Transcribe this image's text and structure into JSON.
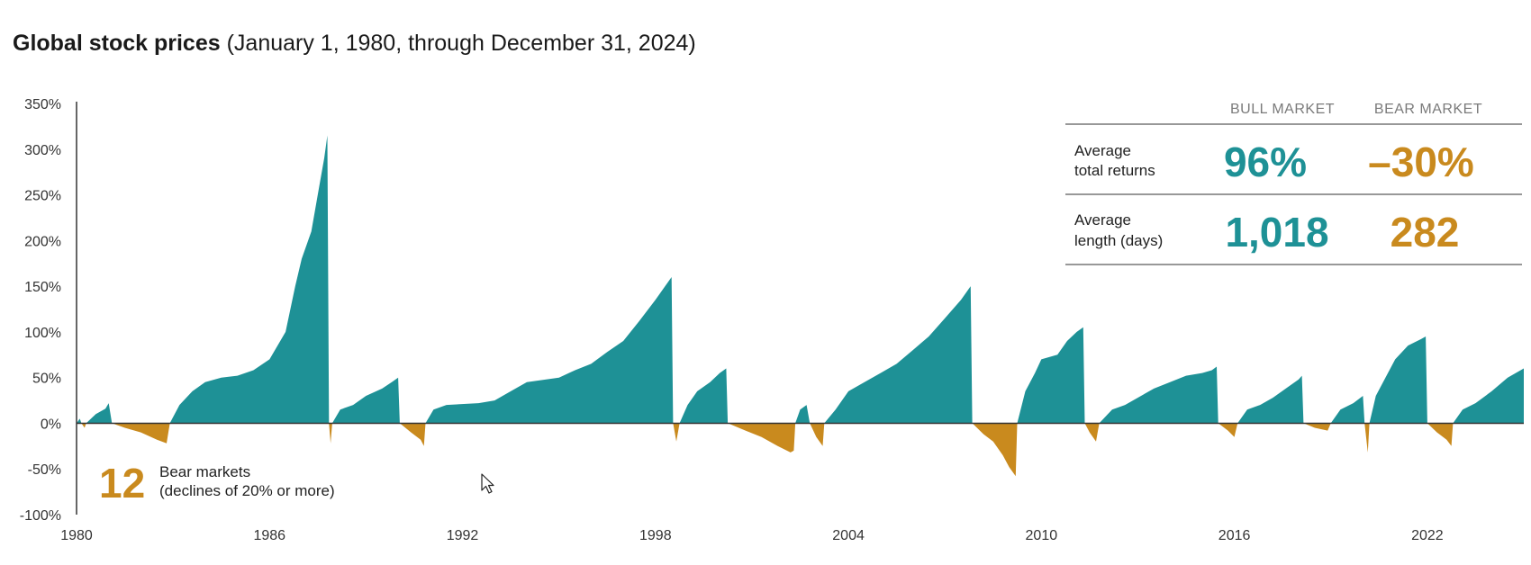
{
  "title": {
    "main": "Global stock prices",
    "sub": " (January 1, 1980, through December 31, 2024)"
  },
  "colors": {
    "bull": "#1e9196",
    "bear": "#c98a1e",
    "axis": "#333333",
    "rule": "#777777"
  },
  "stats": {
    "headers": {
      "bull": "BULL MARKET",
      "bear": "BEAR MARKET"
    },
    "rows": [
      {
        "label": [
          "Average",
          "total returns"
        ],
        "bull": "96%",
        "bear": "–30%"
      },
      {
        "label": [
          "Average",
          "length (days)"
        ],
        "bull": "1,018",
        "bear": "282"
      }
    ]
  },
  "note": {
    "count": "12",
    "text": [
      "Bear markets",
      "(declines of 20% or more)"
    ]
  },
  "chart_data": {
    "type": "area",
    "xlim": [
      1980.0,
      2025.0
    ],
    "ylim": [
      -100,
      350
    ],
    "y_ticks": [
      350,
      300,
      250,
      200,
      150,
      100,
      50,
      0,
      -50,
      -100
    ],
    "y_tick_suffix": "%",
    "x_ticks": [
      1980,
      1986,
      1992,
      1998,
      2004,
      2010,
      2016,
      2022
    ],
    "periods": [
      {
        "kind": "bull",
        "pts": [
          [
            1980.0,
            0
          ],
          [
            1980.1,
            5
          ],
          [
            1980.15,
            0
          ]
        ]
      },
      {
        "kind": "bear",
        "pts": [
          [
            1980.15,
            0
          ],
          [
            1980.25,
            -5
          ],
          [
            1980.3,
            0
          ]
        ]
      },
      {
        "kind": "bull",
        "pts": [
          [
            1980.3,
            0
          ],
          [
            1980.6,
            10
          ],
          [
            1980.9,
            16
          ],
          [
            1981.0,
            22
          ],
          [
            1981.1,
            0
          ]
        ]
      },
      {
        "kind": "bear",
        "pts": [
          [
            1981.1,
            0
          ],
          [
            1981.5,
            -5
          ],
          [
            1982.0,
            -10
          ],
          [
            1982.5,
            -18
          ],
          [
            1982.8,
            -22
          ],
          [
            1982.9,
            0
          ]
        ]
      },
      {
        "kind": "bull",
        "pts": [
          [
            1982.9,
            0
          ],
          [
            1983.2,
            20
          ],
          [
            1983.6,
            35
          ],
          [
            1984.0,
            45
          ],
          [
            1984.5,
            50
          ],
          [
            1985.0,
            52
          ],
          [
            1985.5,
            58
          ],
          [
            1986.0,
            70
          ],
          [
            1986.5,
            100
          ],
          [
            1986.8,
            150
          ],
          [
            1987.0,
            180
          ],
          [
            1987.3,
            210
          ],
          [
            1987.5,
            250
          ],
          [
            1987.7,
            290
          ],
          [
            1987.8,
            315
          ],
          [
            1987.85,
            0
          ]
        ]
      },
      {
        "kind": "bear",
        "pts": [
          [
            1987.85,
            0
          ],
          [
            1987.9,
            -22
          ],
          [
            1987.95,
            0
          ]
        ]
      },
      {
        "kind": "bull",
        "pts": [
          [
            1987.95,
            0
          ],
          [
            1988.2,
            15
          ],
          [
            1988.6,
            20
          ],
          [
            1989.0,
            30
          ],
          [
            1989.5,
            38
          ],
          [
            1989.8,
            45
          ],
          [
            1990.0,
            50
          ],
          [
            1990.05,
            0
          ]
        ]
      },
      {
        "kind": "bear",
        "pts": [
          [
            1990.05,
            0
          ],
          [
            1990.4,
            -10
          ],
          [
            1990.7,
            -18
          ],
          [
            1990.8,
            -25
          ],
          [
            1990.85,
            0
          ]
        ]
      },
      {
        "kind": "bull",
        "pts": [
          [
            1990.85,
            0
          ],
          [
            1991.1,
            15
          ],
          [
            1991.5,
            20
          ],
          [
            1992.5,
            22
          ],
          [
            1993.0,
            25
          ],
          [
            1993.5,
            35
          ],
          [
            1994.0,
            45
          ],
          [
            1995.0,
            50
          ],
          [
            1995.5,
            58
          ],
          [
            1996.0,
            65
          ],
          [
            1996.5,
            78
          ],
          [
            1997.0,
            90
          ],
          [
            1997.5,
            112
          ],
          [
            1998.0,
            135
          ],
          [
            1998.3,
            150
          ],
          [
            1998.5,
            160
          ],
          [
            1998.55,
            0
          ]
        ]
      },
      {
        "kind": "bear",
        "pts": [
          [
            1998.55,
            0
          ],
          [
            1998.65,
            -20
          ],
          [
            1998.75,
            0
          ]
        ]
      },
      {
        "kind": "bull",
        "pts": [
          [
            1998.75,
            0
          ],
          [
            1999.0,
            20
          ],
          [
            1999.3,
            35
          ],
          [
            1999.7,
            45
          ],
          [
            2000.0,
            55
          ],
          [
            2000.2,
            60
          ],
          [
            2000.25,
            0
          ]
        ]
      },
      {
        "kind": "bear",
        "pts": [
          [
            2000.25,
            0
          ],
          [
            2000.8,
            -8
          ],
          [
            2001.3,
            -15
          ],
          [
            2001.8,
            -25
          ],
          [
            2002.2,
            -32
          ],
          [
            2002.3,
            -30
          ],
          [
            2002.35,
            0
          ]
        ]
      },
      {
        "kind": "bull",
        "pts": [
          [
            2002.35,
            0
          ],
          [
            2002.5,
            15
          ],
          [
            2002.7,
            20
          ],
          [
            2002.8,
            0
          ]
        ]
      },
      {
        "kind": "bear",
        "pts": [
          [
            2002.8,
            0
          ],
          [
            2003.0,
            -15
          ],
          [
            2003.2,
            -25
          ],
          [
            2003.25,
            0
          ]
        ]
      },
      {
        "kind": "bull",
        "pts": [
          [
            2003.25,
            0
          ],
          [
            2003.6,
            15
          ],
          [
            2004.0,
            35
          ],
          [
            2004.5,
            45
          ],
          [
            2005.0,
            55
          ],
          [
            2005.5,
            65
          ],
          [
            2006.0,
            80
          ],
          [
            2006.5,
            95
          ],
          [
            2007.0,
            115
          ],
          [
            2007.5,
            135
          ],
          [
            2007.8,
            150
          ],
          [
            2007.85,
            0
          ]
        ]
      },
      {
        "kind": "bear",
        "pts": [
          [
            2007.85,
            0
          ],
          [
            2008.2,
            -12
          ],
          [
            2008.5,
            -20
          ],
          [
            2008.8,
            -35
          ],
          [
            2009.0,
            -48
          ],
          [
            2009.2,
            -58
          ],
          [
            2009.25,
            0
          ]
        ]
      },
      {
        "kind": "bull",
        "pts": [
          [
            2009.25,
            0
          ],
          [
            2009.5,
            35
          ],
          [
            2009.8,
            55
          ],
          [
            2010.0,
            70
          ],
          [
            2010.5,
            75
          ],
          [
            2010.8,
            90
          ],
          [
            2011.1,
            100
          ],
          [
            2011.3,
            105
          ],
          [
            2011.35,
            0
          ]
        ]
      },
      {
        "kind": "bear",
        "pts": [
          [
            2011.35,
            0
          ],
          [
            2011.5,
            -10
          ],
          [
            2011.7,
            -20
          ],
          [
            2011.8,
            0
          ]
        ]
      },
      {
        "kind": "bull",
        "pts": [
          [
            2011.8,
            0
          ],
          [
            2012.2,
            15
          ],
          [
            2012.6,
            20
          ],
          [
            2013.0,
            28
          ],
          [
            2013.5,
            38
          ],
          [
            2014.0,
            45
          ],
          [
            2014.5,
            52
          ],
          [
            2015.0,
            55
          ],
          [
            2015.3,
            58
          ],
          [
            2015.45,
            62
          ],
          [
            2015.5,
            0
          ]
        ]
      },
      {
        "kind": "bear",
        "pts": [
          [
            2015.5,
            0
          ],
          [
            2015.8,
            -8
          ],
          [
            2016.0,
            -15
          ],
          [
            2016.1,
            0
          ]
        ]
      },
      {
        "kind": "bull",
        "pts": [
          [
            2016.1,
            0
          ],
          [
            2016.4,
            15
          ],
          [
            2016.8,
            20
          ],
          [
            2017.2,
            28
          ],
          [
            2017.6,
            38
          ],
          [
            2018.0,
            48
          ],
          [
            2018.1,
            52
          ],
          [
            2018.15,
            0
          ]
        ]
      },
      {
        "kind": "bear",
        "pts": [
          [
            2018.15,
            0
          ],
          [
            2018.5,
            -5
          ],
          [
            2018.9,
            -8
          ],
          [
            2019.0,
            0
          ]
        ]
      },
      {
        "kind": "bull",
        "pts": [
          [
            2019.0,
            0
          ],
          [
            2019.3,
            15
          ],
          [
            2019.7,
            22
          ],
          [
            2020.0,
            30
          ],
          [
            2020.05,
            0
          ]
        ]
      },
      {
        "kind": "bear",
        "pts": [
          [
            2020.05,
            0
          ],
          [
            2020.15,
            -32
          ],
          [
            2020.2,
            0
          ]
        ]
      },
      {
        "kind": "bull",
        "pts": [
          [
            2020.2,
            0
          ],
          [
            2020.4,
            30
          ],
          [
            2020.7,
            50
          ],
          [
            2021.0,
            70
          ],
          [
            2021.4,
            85
          ],
          [
            2021.8,
            92
          ],
          [
            2021.95,
            95
          ],
          [
            2022.0,
            0
          ]
        ]
      },
      {
        "kind": "bear",
        "pts": [
          [
            2022.0,
            0
          ],
          [
            2022.3,
            -10
          ],
          [
            2022.6,
            -18
          ],
          [
            2022.75,
            -25
          ],
          [
            2022.8,
            0
          ]
        ]
      },
      {
        "kind": "bull",
        "pts": [
          [
            2022.8,
            0
          ],
          [
            2023.1,
            15
          ],
          [
            2023.5,
            22
          ],
          [
            2024.0,
            35
          ],
          [
            2024.5,
            50
          ],
          [
            2025.0,
            60
          ],
          [
            2025.0,
            0
          ]
        ]
      }
    ]
  }
}
